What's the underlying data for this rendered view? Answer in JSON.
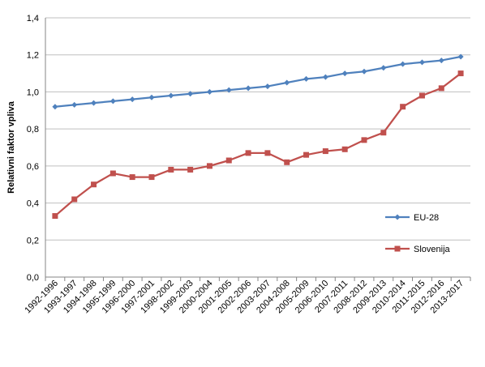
{
  "chart_data": {
    "type": "line",
    "title": "",
    "xlabel": "",
    "ylabel": "Relativni faktor vpliva",
    "ylim": [
      0,
      1.4
    ],
    "yticks": [
      "0,0",
      "0,2",
      "0,4",
      "0,6",
      "0,8",
      "1,0",
      "1,2",
      "1,4"
    ],
    "grid": true,
    "legend_position": "right",
    "categories": [
      "1992-1996",
      "1993-1997",
      "1994-1998",
      "1995-1999",
      "1996-2000",
      "1997-2001",
      "1998-2002",
      "1999-2003",
      "2000-2004",
      "2001-2005",
      "2002-2006",
      "2003-2007",
      "2004-2008",
      "2005-2009",
      "2006-2010",
      "2007-2011",
      "2008-2012",
      "2009-2013",
      "2010-2014",
      "2011-2015",
      "2012-2016",
      "2013-2017"
    ],
    "series": [
      {
        "name": "EU-28",
        "color": "#4F81BD",
        "marker": "diamond",
        "values": [
          0.92,
          0.93,
          0.94,
          0.95,
          0.96,
          0.97,
          0.98,
          0.99,
          1.0,
          1.01,
          1.02,
          1.03,
          1.05,
          1.07,
          1.08,
          1.1,
          1.11,
          1.13,
          1.15,
          1.16,
          1.17,
          1.19
        ]
      },
      {
        "name": "Slovenija",
        "color": "#C0504D",
        "marker": "square",
        "values": [
          0.33,
          0.42,
          0.5,
          0.56,
          0.54,
          0.54,
          0.58,
          0.58,
          0.6,
          0.63,
          0.67,
          0.67,
          0.62,
          0.66,
          0.68,
          0.69,
          0.74,
          0.78,
          0.92,
          0.98,
          1.02,
          1.1
        ]
      }
    ]
  }
}
